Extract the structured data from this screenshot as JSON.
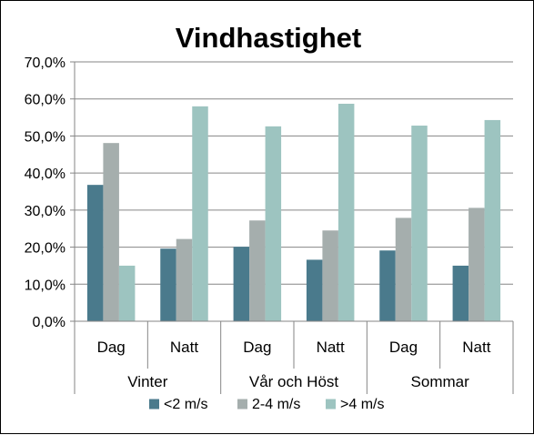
{
  "chart_data": {
    "type": "bar",
    "title": "Vindhastighet",
    "groups": [
      {
        "label": "Vinter",
        "categories": [
          "Dag",
          "Natt"
        ]
      },
      {
        "label": "Vår och Höst",
        "categories": [
          "Dag",
          "Natt"
        ]
      },
      {
        "label": "Sommar",
        "categories": [
          "Dag",
          "Natt"
        ]
      }
    ],
    "series": [
      {
        "name": "<2 m/s",
        "color": "#4a7a8c",
        "values": [
          36.8,
          19.6,
          20.1,
          16.6,
          19.1,
          15.0
        ]
      },
      {
        "name": "2-4 m/s",
        "color": "#a5aead",
        "values": [
          48.1,
          22.2,
          27.2,
          24.5,
          27.9,
          30.6
        ]
      },
      {
        "name": ">4 m/s",
        "color": "#9dc4c0",
        "values": [
          15.0,
          58.0,
          52.6,
          58.7,
          52.8,
          54.3
        ]
      }
    ],
    "y_ticks": [
      "0,0%",
      "10,0%",
      "20,0%",
      "30,0%",
      "40,0%",
      "50,0%",
      "60,0%",
      "70,0%"
    ],
    "ylim": [
      0,
      70
    ],
    "grid": true,
    "legend_position": "bottom"
  }
}
